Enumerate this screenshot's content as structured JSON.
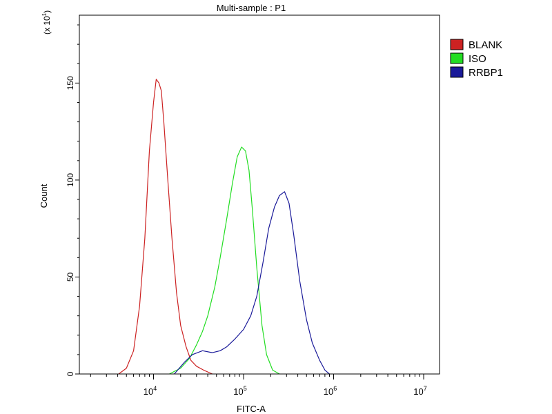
{
  "chart_data": {
    "type": "line",
    "title": "Multi-sample : P1",
    "xlabel": "FITC-A",
    "ylabel": "Count",
    "y_multiplier_label": "(x 10",
    "y_multiplier_exp": "1",
    "x_scale": "log",
    "xlim": [
      1500,
      15000000
    ],
    "ylim": [
      0,
      185
    ],
    "x_ticks": [
      {
        "value": 10000,
        "base": "10",
        "exp": "4"
      },
      {
        "value": 100000,
        "base": "10",
        "exp": "5"
      },
      {
        "value": 1000000,
        "base": "10",
        "exp": "6"
      },
      {
        "value": 10000000,
        "base": "10",
        "exp": "7"
      }
    ],
    "y_ticks": [
      {
        "value": 0,
        "label": "0"
      },
      {
        "value": 50,
        "label": "50"
      },
      {
        "value": 100,
        "label": "100"
      },
      {
        "value": 150,
        "label": "150"
      }
    ],
    "legend_position": "right",
    "series": [
      {
        "name": "BLANK",
        "color": "#cc2222",
        "points": [
          [
            4100,
            0
          ],
          [
            5000,
            3
          ],
          [
            6000,
            12
          ],
          [
            7000,
            35
          ],
          [
            8000,
            70
          ],
          [
            9000,
            115
          ],
          [
            10000,
            140
          ],
          [
            10700,
            152
          ],
          [
            11500,
            150
          ],
          [
            12200,
            146
          ],
          [
            13000,
            130
          ],
          [
            14500,
            98
          ],
          [
            16000,
            70
          ],
          [
            18000,
            42
          ],
          [
            20000,
            25
          ],
          [
            23000,
            14
          ],
          [
            26000,
            7
          ],
          [
            30000,
            4
          ],
          [
            36000,
            2
          ],
          [
            45000,
            0
          ]
        ]
      },
      {
        "name": "ISO",
        "color": "#22dd22",
        "points": [
          [
            15000,
            0
          ],
          [
            20000,
            3
          ],
          [
            25000,
            8
          ],
          [
            30000,
            15
          ],
          [
            35000,
            22
          ],
          [
            40000,
            30
          ],
          [
            48000,
            45
          ],
          [
            55000,
            60
          ],
          [
            65000,
            80
          ],
          [
            75000,
            98
          ],
          [
            85000,
            112
          ],
          [
            95000,
            117
          ],
          [
            105000,
            115
          ],
          [
            115000,
            105
          ],
          [
            125000,
            85
          ],
          [
            140000,
            55
          ],
          [
            160000,
            25
          ],
          [
            180000,
            10
          ],
          [
            210000,
            2
          ],
          [
            250000,
            0
          ]
        ]
      },
      {
        "name": "RRBP1",
        "color": "#1a1a99",
        "points": [
          [
            17000,
            0
          ],
          [
            22000,
            6
          ],
          [
            27000,
            10
          ],
          [
            35000,
            12
          ],
          [
            45000,
            11
          ],
          [
            55000,
            12
          ],
          [
            65000,
            14
          ],
          [
            80000,
            18
          ],
          [
            100000,
            23
          ],
          [
            120000,
            30
          ],
          [
            140000,
            40
          ],
          [
            165000,
            58
          ],
          [
            190000,
            75
          ],
          [
            220000,
            86
          ],
          [
            250000,
            92
          ],
          [
            285000,
            94
          ],
          [
            320000,
            88
          ],
          [
            360000,
            72
          ],
          [
            420000,
            48
          ],
          [
            500000,
            28
          ],
          [
            580000,
            16
          ],
          [
            700000,
            7
          ],
          [
            800000,
            2
          ],
          [
            900000,
            0
          ]
        ]
      }
    ]
  }
}
